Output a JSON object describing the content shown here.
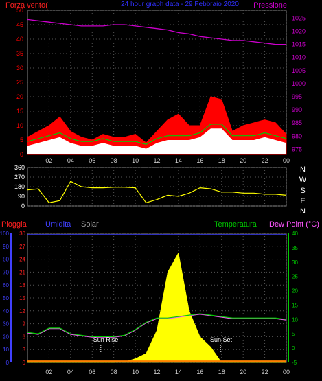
{
  "colors": {
    "background": "#000000",
    "wind": "#ff0000",
    "gust_mid": "#00cc00",
    "wind_fill": "#ffffff",
    "pressure": "#cc00cc",
    "direction": "#ffff00",
    "rain": "#ff2020",
    "humidity": "#4040ff",
    "solar": "#ffff00",
    "temperature": "#00cc00",
    "dew_point": "#ff55ff",
    "grid": "#555555",
    "text_light": "#d0d0d0"
  },
  "header": {
    "left_label": "Forza vento(",
    "center_label": "24 hour graph data - 29 Febbraio 2020",
    "right_label": "Pressione"
  },
  "mid": {
    "compass": [
      "N",
      "W",
      "S",
      "E",
      "N"
    ]
  },
  "lower_header": {
    "rain": "Pioggia",
    "humidity": "Umidita",
    "solar": "Solar",
    "temperature": "Temperatura",
    "dew": "Dew Point (°C)"
  },
  "annotations": {
    "sunrise": "Sun Rise",
    "sunset": "Sun Set"
  },
  "chart_data": [
    {
      "type": "line",
      "id": "wind-pressure",
      "x_ticks": [
        "02",
        "04",
        "06",
        "08",
        "10",
        "12",
        "14",
        "16",
        "18",
        "20",
        "22",
        "00"
      ],
      "y_left_ticks": [
        "0",
        "5",
        "10",
        "15",
        "20",
        "25",
        "30",
        "35",
        "40",
        "45",
        "50"
      ],
      "y_left_range": [
        0,
        50
      ],
      "y_right_ticks": [
        "975",
        "980",
        "985",
        "990",
        "995",
        "1000",
        "1005",
        "1010",
        "1015",
        "1020",
        "1025"
      ],
      "y_right_range": [
        973,
        1028
      ],
      "x": [
        0,
        1,
        2,
        3,
        4,
        5,
        6,
        7,
        8,
        9,
        10,
        11,
        12,
        13,
        14,
        15,
        16,
        17,
        18,
        19,
        20,
        21,
        22,
        23,
        24
      ],
      "series": [
        {
          "name": "Pressione",
          "axis": "right",
          "values": [
            1024.5,
            1024,
            1023.5,
            1023,
            1022.5,
            1022,
            1022,
            1022,
            1022.5,
            1022.5,
            1022,
            1021.5,
            1021,
            1020.5,
            1019.5,
            1019,
            1018,
            1017.5,
            1017,
            1016.5,
            1016.5,
            1016,
            1015.5,
            1015,
            1015
          ]
        },
        {
          "name": "gust",
          "axis": "left",
          "values": [
            6,
            8,
            10,
            13,
            8,
            6,
            5,
            7,
            6,
            6,
            7,
            4,
            8,
            12,
            14,
            10,
            10,
            20,
            19,
            8,
            10,
            11,
            12,
            11,
            7
          ]
        },
        {
          "name": "avg",
          "axis": "left",
          "values": [
            3,
            4,
            5,
            6,
            4,
            3,
            3,
            4,
            3,
            3,
            3,
            2,
            4,
            5,
            5,
            5,
            6,
            9,
            9,
            5,
            5,
            5,
            6,
            5,
            4
          ]
        }
      ]
    },
    {
      "type": "line",
      "id": "wind-direction",
      "y_ticks": [
        "0",
        "90",
        "180",
        "270",
        "360"
      ],
      "y_range": [
        0,
        360
      ],
      "x": [
        0,
        1,
        2,
        3,
        4,
        5,
        6,
        7,
        8,
        9,
        10,
        11,
        12,
        13,
        14,
        15,
        16,
        17,
        18,
        19,
        20,
        21,
        22,
        23,
        24
      ],
      "series": [
        {
          "name": "direction",
          "values": [
            150,
            160,
            30,
            50,
            230,
            180,
            170,
            170,
            175,
            175,
            170,
            30,
            60,
            100,
            90,
            120,
            170,
            160,
            130,
            130,
            120,
            120,
            110,
            110,
            100
          ]
        }
      ]
    },
    {
      "type": "area",
      "id": "rain-hum-solar-temp",
      "y_hum_ticks": [
        "0",
        "10",
        "20",
        "30",
        "40",
        "50",
        "60",
        "70",
        "80",
        "90",
        "100"
      ],
      "y_hum_range": [
        0,
        100
      ],
      "y_rain_ticks": [
        "0",
        "3",
        "6",
        "9",
        "12",
        "15",
        "18",
        "21",
        "24",
        "27",
        "30"
      ],
      "y_rain_range": [
        0,
        30
      ],
      "y_temp_ticks": [
        "-5",
        "0",
        "5",
        "10",
        "15",
        "20",
        "25",
        "30",
        "35",
        "40"
      ],
      "y_temp_range": [
        -5,
        40
      ],
      "x": [
        0,
        1,
        2,
        3,
        4,
        5,
        6,
        7,
        8,
        9,
        10,
        11,
        12,
        13,
        14,
        15,
        16,
        17,
        18,
        19,
        20,
        21,
        22,
        23,
        24
      ],
      "series": [
        {
          "name": "Temperatura",
          "values": [
            5.5,
            5,
            7,
            7,
            5,
            4.5,
            4,
            4,
            4,
            4.5,
            6.5,
            9,
            10.5,
            10.5,
            11,
            11.5,
            12,
            11.5,
            11,
            10.5,
            10.5,
            10.5,
            10.5,
            10.5,
            10
          ]
        },
        {
          "name": "Dew Point",
          "values": [
            5.3,
            4.8,
            6.8,
            6.8,
            4.8,
            4.3,
            3.8,
            3.8,
            3.8,
            4.3,
            6.3,
            8.8,
            10.3,
            10.3,
            10.8,
            11.3,
            11.8,
            11.3,
            10.8,
            10.3,
            10.3,
            10.3,
            10.3,
            10.3,
            9.8
          ]
        },
        {
          "name": "Solar",
          "values": [
            0,
            0,
            0,
            0,
            0,
            0,
            0,
            0,
            0,
            5,
            30,
            70,
            250,
            700,
            850,
            400,
            200,
            120,
            0,
            0,
            0,
            0,
            0,
            0,
            0
          ]
        },
        {
          "name": "Pioggia",
          "values": [
            0.3,
            0.3,
            0.3,
            0.3,
            0.3,
            0.3,
            0.3,
            0.3,
            0.3,
            0.3,
            0.3,
            0.3,
            0.3,
            0.3,
            0.3,
            0.3,
            0.3,
            0.3,
            0.3,
            0.3,
            0.3,
            0.3,
            0.3,
            0.3,
            0.3
          ]
        },
        {
          "name": "Umidita",
          "values": [
            99,
            99,
            99,
            99,
            99,
            99,
            99,
            99,
            99,
            99,
            99,
            99,
            99,
            99,
            99,
            99,
            99,
            99,
            99,
            99,
            99,
            99,
            99,
            99,
            99
          ]
        }
      ],
      "sunrise_hour": 6.8,
      "sunset_hour": 17.9
    }
  ]
}
